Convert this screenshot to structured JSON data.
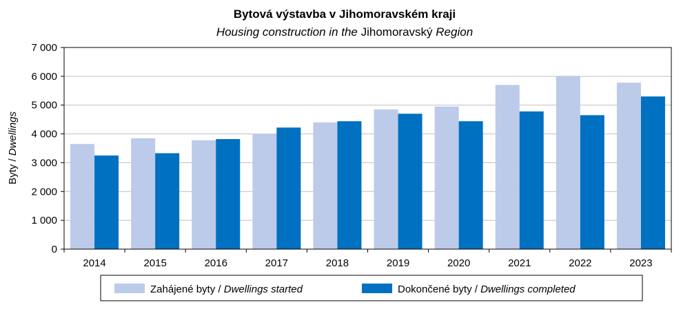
{
  "chart_data": {
    "type": "bar",
    "title": "Bytová výstavba v Jihomoravském kraji",
    "subtitle_italic_1": "Housing construction in the",
    "subtitle_normal": "Jihomoravský",
    "subtitle_italic_2": "Region",
    "ylabel_normal": "Byty / ",
    "ylabel_italic": "Dwellings",
    "ylim": [
      0,
      7000
    ],
    "yticks": [
      0,
      1000,
      2000,
      3000,
      4000,
      5000,
      6000,
      7000
    ],
    "ytick_labels": [
      "0",
      "1 000",
      "2 000",
      "3 000",
      "4 000",
      "5 000",
      "6 000",
      "7 000"
    ],
    "grid": true,
    "legend_position": "bottom",
    "categories": [
      "2014",
      "2015",
      "2016",
      "2017",
      "2018",
      "2019",
      "2020",
      "2021",
      "2022",
      "2023"
    ],
    "series": [
      {
        "name": "Zahájené  byty / ",
        "name_italic": "Dwellings started",
        "color": "#bccbea",
        "values": [
          3650,
          3850,
          3780,
          4000,
          4400,
          4850,
          4950,
          5700,
          6000,
          5780
        ]
      },
      {
        "name": "Dokončené byty / ",
        "name_italic": "Dwellings completed",
        "color": "#0070c0",
        "values": [
          3250,
          3330,
          3820,
          4220,
          4440,
          4700,
          4440,
          4780,
          4650,
          5300
        ]
      }
    ]
  }
}
